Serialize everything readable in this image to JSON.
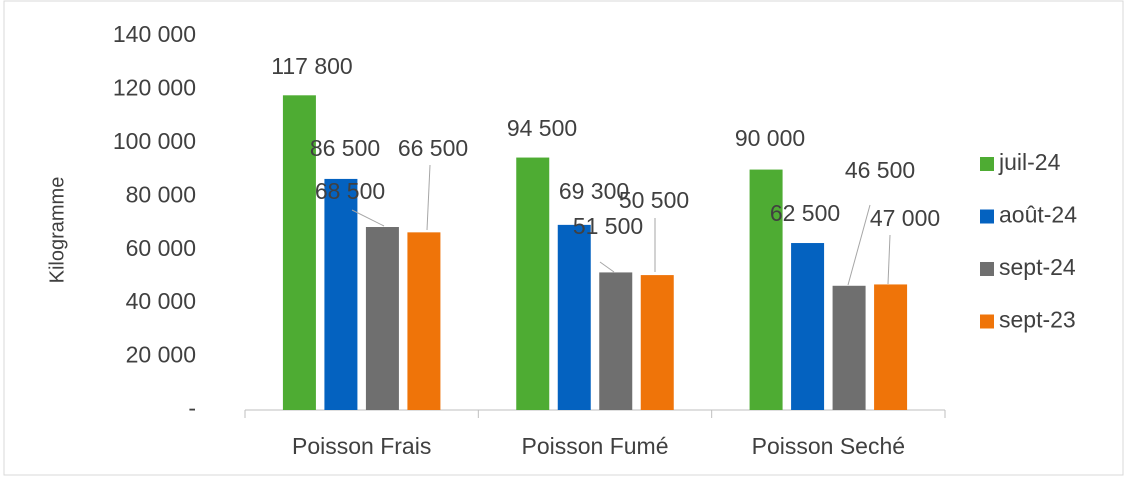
{
  "chart_data": {
    "type": "bar",
    "y_label": "Kilogramme",
    "categories": [
      "Poisson Frais",
      "Poisson Fumé",
      "Poisson Seché"
    ],
    "series": [
      {
        "name": "juil-24",
        "color": "#4eac33",
        "values": [
          117800,
          94500,
          90000
        ],
        "value_labels": [
          "117 800",
          "94 500",
          "90 000"
        ]
      },
      {
        "name": "août-24",
        "color": "#0462c0",
        "values": [
          86500,
          69300,
          62500
        ],
        "value_labels": [
          "86 500",
          "69 300",
          "62 500"
        ]
      },
      {
        "name": "sept-24",
        "color": "#6f6f6f",
        "values": [
          68500,
          51500,
          46500
        ],
        "value_labels": [
          "68 500",
          "51 500",
          "46 500"
        ]
      },
      {
        "name": "sept-23",
        "color": "#ef7409",
        "values": [
          66500,
          50500,
          47000
        ],
        "value_labels": [
          "66 500",
          "50 500",
          "47 000"
        ]
      }
    ],
    "ylim": [
      0,
      140000
    ],
    "yticks": [
      {
        "value": 0,
        "label": "-"
      },
      {
        "value": 20000,
        "label": "20 000"
      },
      {
        "value": 40000,
        "label": "40 000"
      },
      {
        "value": 60000,
        "label": "60 000"
      },
      {
        "value": 80000,
        "label": "80 000"
      },
      {
        "value": 100000,
        "label": "100 000"
      },
      {
        "value": 120000,
        "label": "120 000"
      },
      {
        "value": 140000,
        "label": "140 000"
      }
    ],
    "legend": "right"
  }
}
